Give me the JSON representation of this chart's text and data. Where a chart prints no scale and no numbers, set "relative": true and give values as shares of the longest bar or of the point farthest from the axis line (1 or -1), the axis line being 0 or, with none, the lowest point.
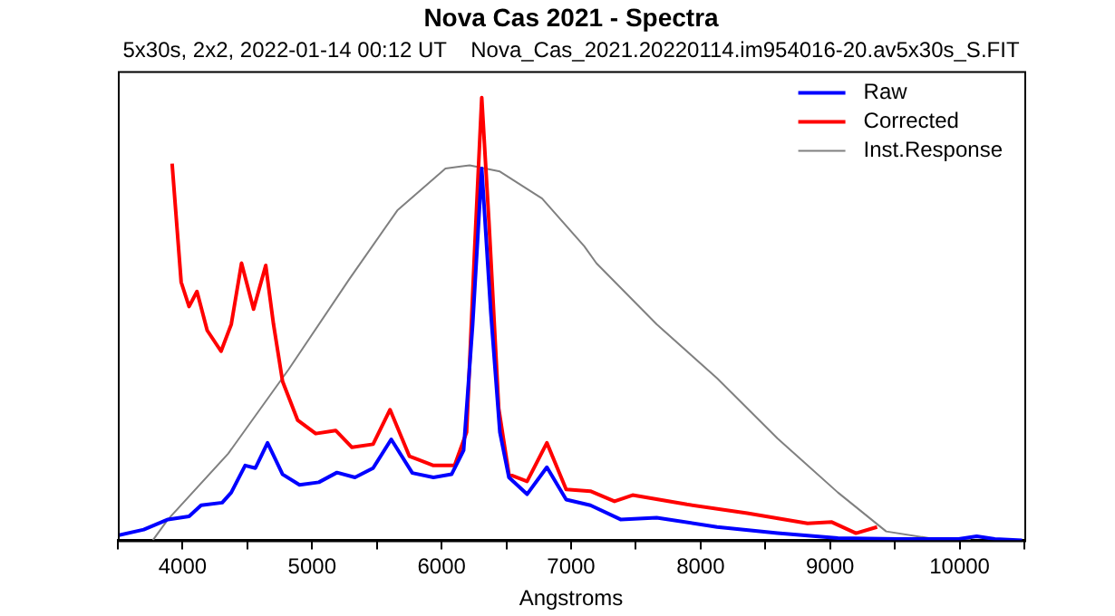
{
  "chart_data": {
    "type": "line",
    "title": "Nova Cas 2021 - Spectra",
    "subtitle": "5x30s, 2x2, 2022-01-14 00:12 UT    Nova_Cas_2021.20220114.im954016-20.av5x30s_S.FIT",
    "xlabel": "Angstroms",
    "relative": true,
    "xlim": [
      3500,
      10500
    ],
    "xticks": [
      {
        "value": 3500,
        "label": null
      },
      4000,
      {
        "value": 4500,
        "label": null
      },
      5000,
      {
        "value": 5500,
        "label": null
      },
      6000,
      {
        "value": 6500,
        "label": null
      },
      7000,
      {
        "value": 7500,
        "label": null
      },
      8000,
      {
        "value": 8500,
        "label": null
      },
      9000,
      {
        "value": 9500,
        "label": null
      },
      10000,
      {
        "value": 10500,
        "label": null
      }
    ],
    "series": [
      {
        "name": "Raw",
        "color": "#0000ff",
        "x": [
          3500,
          3700,
          3887,
          4050,
          4143,
          4306,
          4376,
          4483,
          4562,
          4656,
          4772,
          4903,
          5052,
          5192,
          5331,
          5471,
          5611,
          5774,
          5937,
          6077,
          6170,
          6240,
          6310,
          6380,
          6450,
          6520,
          6660,
          6813,
          6962,
          7149,
          7382,
          7661,
          8127,
          8594,
          9060,
          9526,
          9992,
          10132,
          10272,
          10482
        ],
        "values": [
          0.011,
          0.024,
          0.047,
          0.054,
          0.079,
          0.085,
          0.108,
          0.169,
          0.163,
          0.22,
          0.149,
          0.125,
          0.131,
          0.153,
          0.142,
          0.163,
          0.228,
          0.152,
          0.142,
          0.149,
          0.203,
          0.488,
          0.84,
          0.515,
          0.244,
          0.142,
          0.104,
          0.165,
          0.092,
          0.079,
          0.047,
          0.051,
          0.03,
          0.016,
          0.005,
          0.003,
          0.003,
          0.009,
          0.003,
          0
        ]
      },
      {
        "name": "Corrected",
        "color": "#ff0000",
        "x": [
          3919,
          3989,
          4050,
          4111,
          4190,
          4297,
          4376,
          4455,
          4548,
          4642,
          4702,
          4772,
          4889,
          5028,
          5182,
          5308,
          5471,
          5602,
          5751,
          5937,
          6100,
          6193,
          6254,
          6310,
          6366,
          6441,
          6520,
          6660,
          6813,
          6962,
          7149,
          7335,
          7475,
          7894,
          8360,
          8826,
          9013,
          9200,
          9363
        ],
        "values": [
          0.851,
          0.583,
          0.528,
          0.562,
          0.474,
          0.427,
          0.488,
          0.626,
          0.522,
          0.621,
          0.488,
          0.359,
          0.271,
          0.241,
          0.248,
          0.21,
          0.217,
          0.295,
          0.19,
          0.169,
          0.169,
          0.244,
          0.65,
          1,
          0.718,
          0.298,
          0.149,
          0.133,
          0.22,
          0.115,
          0.111,
          0.088,
          0.102,
          0.081,
          0.061,
          0.038,
          0.041,
          0.016,
          0.03
        ]
      },
      {
        "name": "Inst.Response",
        "color": "#808080",
        "x": [
          3770,
          3887,
          4353,
          4819,
          5285,
          5658,
          6030,
          6217,
          6450,
          6776,
          7102,
          7195,
          7661,
          8127,
          8594,
          9060,
          9433,
          9806,
          10085
        ],
        "values": [
          0,
          0.047,
          0.196,
          0.386,
          0.589,
          0.745,
          0.84,
          0.847,
          0.833,
          0.772,
          0.664,
          0.626,
          0.488,
          0.366,
          0.23,
          0.108,
          0.02,
          0.003,
          0.003
        ]
      }
    ],
    "grid": false,
    "legend": "top right",
    "marker": "none",
    "line_style": "solid"
  }
}
